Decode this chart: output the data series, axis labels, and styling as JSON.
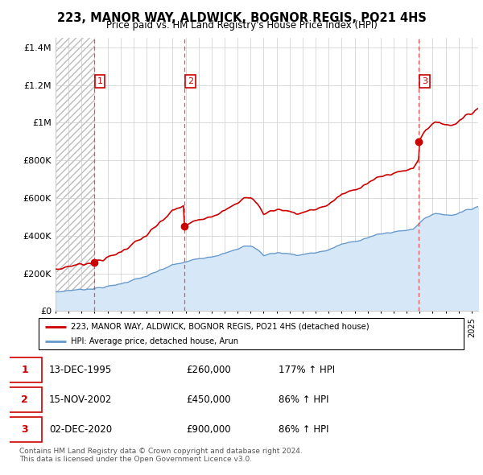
{
  "title": "223, MANOR WAY, ALDWICK, BOGNOR REGIS, PO21 4HS",
  "subtitle": "Price paid vs. HM Land Registry's House Price Index (HPI)",
  "yticks": [
    0,
    200000,
    400000,
    600000,
    800000,
    1000000,
    1200000,
    1400000
  ],
  "ytick_labels": [
    "£0",
    "£200K",
    "£400K",
    "£600K",
    "£800K",
    "£1M",
    "£1.2M",
    "£1.4M"
  ],
  "xlim_start": 1993.0,
  "xlim_end": 2025.5,
  "ylim_min": 0,
  "ylim_max": 1450000,
  "red_line_color": "#cc0000",
  "blue_line_color": "#6699cc",
  "hpi_fill_color": "#d6e8f7",
  "sale_dates": [
    1995.95,
    2002.88,
    2020.92
  ],
  "sale_prices": [
    260000,
    450000,
    900000
  ],
  "sale_labels": [
    "1",
    "2",
    "3"
  ],
  "legend_label_red": "223, MANOR WAY, ALDWICK, BOGNOR REGIS, PO21 4HS (detached house)",
  "legend_label_blue": "HPI: Average price, detached house, Arun",
  "table_rows": [
    [
      "1",
      "13-DEC-1995",
      "£260,000",
      "177% ↑ HPI"
    ],
    [
      "2",
      "15-NOV-2002",
      "£450,000",
      "86% ↑ HPI"
    ],
    [
      "3",
      "02-DEC-2020",
      "£900,000",
      "86% ↑ HPI"
    ]
  ],
  "footer_text": "Contains HM Land Registry data © Crown copyright and database right 2024.\nThis data is licensed under the Open Government Licence v3.0."
}
